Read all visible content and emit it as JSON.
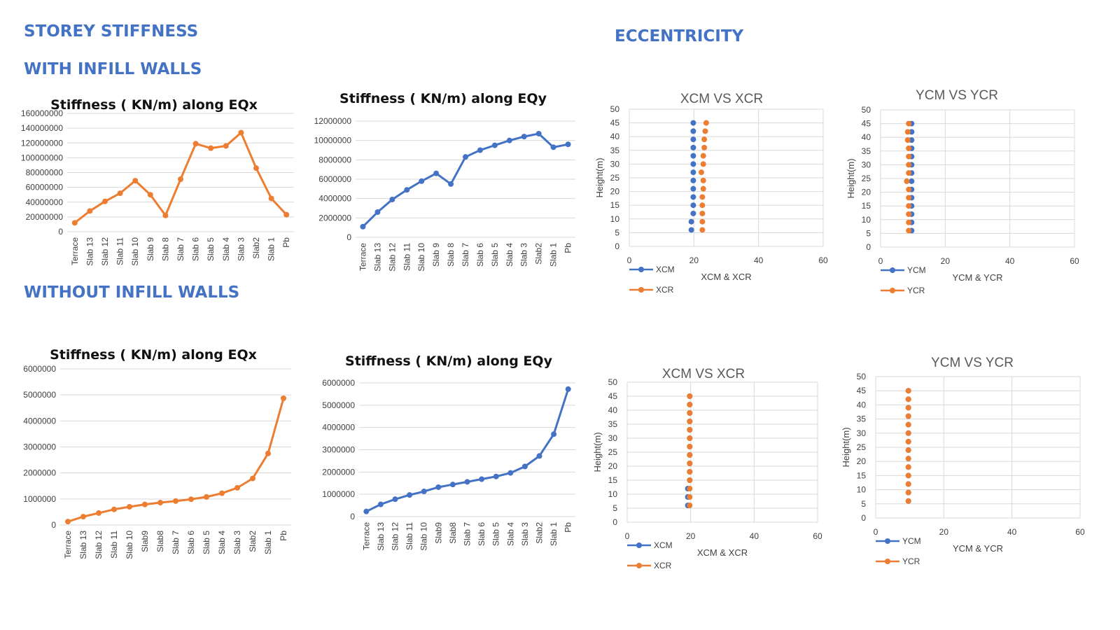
{
  "headings": {
    "storey_stiffness": "STOREY STIFFNESS",
    "with_infill": "WITH INFILL WALLS",
    "without_infill": "WITHOUT INFILL WALLS",
    "eccentricity": "ECCENTRICITY"
  },
  "colors": {
    "heading": "#4472C4",
    "orange": "#ED7D31",
    "blue": "#4472C4",
    "grid": "#D9D9D9"
  },
  "chart_data": [
    {
      "id": "with_eqx",
      "type": "line",
      "title": "Stiffness ( KN/m) along EQx",
      "categories": [
        "Terrace",
        "Slab 13",
        "Slab 12",
        "Slab 11",
        "Slab 10",
        "Slab 9",
        "Slab 8",
        "Slab 7",
        "Slab 6",
        "Slab 5",
        "Slab 4",
        "Slab 3",
        "Slab2",
        "Slab 1",
        "Pb"
      ],
      "series": [
        {
          "color": "#ED7D31",
          "values": [
            12000000,
            28000000,
            41000000,
            52000000,
            69000000,
            50000000,
            22000000,
            71000000,
            119000000,
            113000000,
            116000000,
            134000000,
            86000000,
            45000000,
            23000000
          ]
        }
      ],
      "ylim": [
        0,
        160000000
      ],
      "ystep": 20000000,
      "grid": true
    },
    {
      "id": "with_eqy",
      "type": "line",
      "title": "Stiffness ( KN/m) along EQy",
      "categories": [
        "Terrace",
        "Slab 13",
        "Slab 12",
        "Slab 11",
        "Slab 10",
        "Slab 9",
        "Slab 8",
        "Slab 7",
        "Slab 6",
        "Slab 5",
        "Slab 4",
        "Slab 3",
        "Slab2",
        "Slab 1",
        "Pb"
      ],
      "series": [
        {
          "color": "#4472C4",
          "values": [
            1100000,
            2600000,
            3900000,
            4900000,
            5800000,
            6600000,
            5500000,
            8300000,
            9000000,
            9500000,
            10000000,
            10400000,
            10700000,
            9300000,
            9600000
          ]
        }
      ],
      "ylim": [
        0,
        12000000
      ],
      "ystep": 2000000,
      "grid": true
    },
    {
      "id": "without_eqx",
      "type": "line",
      "title": "Stiffness ( KN/m) along EQx",
      "categories": [
        "Terrace",
        "Slab 13",
        "Slab 12",
        "Slab 11",
        "Slab 10",
        "Slab9",
        "Slab8",
        "Slab 7",
        "Slab 6",
        "Slab 5",
        "Slab 4",
        "Slab 3",
        "Slab2",
        "Slab 1",
        "Pb"
      ],
      "series": [
        {
          "color": "#ED7D31",
          "values": [
            130000,
            320000,
            460000,
            600000,
            700000,
            790000,
            860000,
            920000,
            990000,
            1080000,
            1220000,
            1430000,
            1790000,
            2750000,
            4870000
          ]
        }
      ],
      "ylim": [
        0,
        6000000
      ],
      "ystep": 1000000,
      "grid": true
    },
    {
      "id": "without_eqy",
      "type": "line",
      "title": "Stiffness ( KN/m) along EQy",
      "categories": [
        "Terrace",
        "Slab 13",
        "Slab 12",
        "Slab 11",
        "Slab 10",
        "Slab9",
        "Slab8",
        "Slab 7",
        "Slab 6",
        "Slab 5",
        "Slab 4",
        "Slab 3",
        "Slab2",
        "Slab 1",
        "Pb"
      ],
      "series": [
        {
          "color": "#4472C4",
          "values": [
            230000,
            550000,
            780000,
            970000,
            1130000,
            1320000,
            1440000,
            1560000,
            1680000,
            1800000,
            1960000,
            2250000,
            2720000,
            3700000,
            5720000
          ]
        }
      ],
      "ylim": [
        0,
        6000000
      ],
      "ystep": 1000000,
      "grid": true
    },
    {
      "id": "with_x",
      "type": "scatter",
      "title": "XCM VS XCR",
      "xlabel": "XCM & XCR",
      "ylabel": "Height(m)",
      "xlim": [
        0,
        60
      ],
      "xstep": 20,
      "ylim": [
        0,
        50
      ],
      "ystep": 5,
      "grid": true,
      "legend": "bottom-left",
      "series": [
        {
          "name": "XCM",
          "color": "#4472C4",
          "x": [
            19.2,
            19.2,
            19.8,
            19.8,
            19.8,
            19.8,
            19.8,
            19.8,
            19.8,
            19.8,
            19.8,
            19.8,
            19.8,
            19.8
          ],
          "y": [
            6,
            9,
            12,
            15,
            18,
            21,
            24,
            27,
            30,
            33,
            36,
            39,
            42,
            45
          ]
        },
        {
          "name": "XCR",
          "color": "#ED7D31",
          "x": [
            22.6,
            22.6,
            22.6,
            22.6,
            22.6,
            22.9,
            22.9,
            22.3,
            22.9,
            22.9,
            23.2,
            23.2,
            23.5,
            23.8
          ],
          "y": [
            6,
            9,
            12,
            15,
            18,
            21,
            24,
            27,
            30,
            33,
            36,
            39,
            42,
            45
          ]
        }
      ]
    },
    {
      "id": "with_y",
      "type": "scatter",
      "title": "YCM VS YCR",
      "xlabel": "YCM & YCR",
      "ylabel": "Height(m)",
      "xlim": [
        0,
        60
      ],
      "xstep": 20,
      "ylim": [
        0,
        50
      ],
      "ystep": 5,
      "grid": true,
      "legend": "bottom-left",
      "series": [
        {
          "name": "YCM",
          "color": "#4472C4",
          "x": [
            9.6,
            9.6,
            9.6,
            9.6,
            9.6,
            9.6,
            9.6,
            9.6,
            9.6,
            9.6,
            9.6,
            9.6,
            9.6,
            9.6
          ],
          "y": [
            6,
            9,
            12,
            15,
            18,
            21,
            24,
            27,
            30,
            33,
            36,
            39,
            42,
            45
          ]
        },
        {
          "name": "YCR",
          "color": "#ED7D31",
          "x": [
            8.7,
            8.7,
            8.7,
            8.7,
            8.7,
            8.7,
            8.1,
            8.7,
            8.7,
            8.7,
            8.7,
            8.4,
            8.4,
            8.7
          ],
          "y": [
            6,
            9,
            12,
            15,
            18,
            21,
            24,
            27,
            30,
            33,
            36,
            39,
            42,
            45
          ]
        }
      ]
    },
    {
      "id": "without_x",
      "type": "scatter",
      "title": "XCM VS XCR",
      "xlabel": "XCM & XCR",
      "ylabel": "Height(m)",
      "xlim": [
        0,
        60
      ],
      "xstep": 20,
      "ylim": [
        0,
        50
      ],
      "ystep": 5,
      "grid": true,
      "legend": "bottom-left",
      "series": [
        {
          "name": "XCM",
          "color": "#4472C4",
          "x": [
            19.1,
            19.1,
            19.1,
            19.7,
            19.7,
            19.7,
            19.7,
            19.7,
            19.7,
            19.7,
            19.7,
            19.7,
            19.7,
            19.7
          ],
          "y": [
            6,
            9,
            12,
            15,
            18,
            21,
            24,
            27,
            30,
            33,
            36,
            39,
            42,
            45
          ]
        },
        {
          "name": "XCR",
          "color": "#ED7D31",
          "x": [
            19.7,
            19.7,
            19.7,
            19.7,
            19.7,
            19.7,
            19.7,
            19.7,
            19.7,
            19.7,
            19.7,
            19.7,
            19.7,
            19.7
          ],
          "y": [
            6,
            9,
            12,
            15,
            18,
            21,
            24,
            27,
            30,
            33,
            36,
            39,
            42,
            45
          ]
        }
      ]
    },
    {
      "id": "without_y",
      "type": "scatter",
      "title": "YCM VS YCR",
      "xlabel": "YCM & YCR",
      "ylabel": "Height(m)",
      "xlim": [
        0,
        60
      ],
      "xstep": 20,
      "ylim": [
        0,
        50
      ],
      "ystep": 5,
      "grid": true,
      "legend": "bottom-left",
      "series": [
        {
          "name": "YCM",
          "color": "#4472C4",
          "x": [
            9.6,
            9.6,
            9.6,
            9.6,
            9.6,
            9.6,
            9.6,
            9.6,
            9.6,
            9.6,
            9.6,
            9.6,
            9.6,
            9.6
          ],
          "y": [
            6,
            9,
            12,
            15,
            18,
            21,
            24,
            27,
            30,
            33,
            36,
            39,
            42,
            45
          ]
        },
        {
          "name": "YCR",
          "color": "#ED7D31",
          "x": [
            9.6,
            9.6,
            9.6,
            9.6,
            9.6,
            9.6,
            9.6,
            9.6,
            9.6,
            9.6,
            9.6,
            9.6,
            9.6,
            9.6
          ],
          "y": [
            6,
            9,
            12,
            15,
            18,
            21,
            24,
            27,
            30,
            33,
            36,
            39,
            42,
            45
          ]
        }
      ]
    }
  ]
}
